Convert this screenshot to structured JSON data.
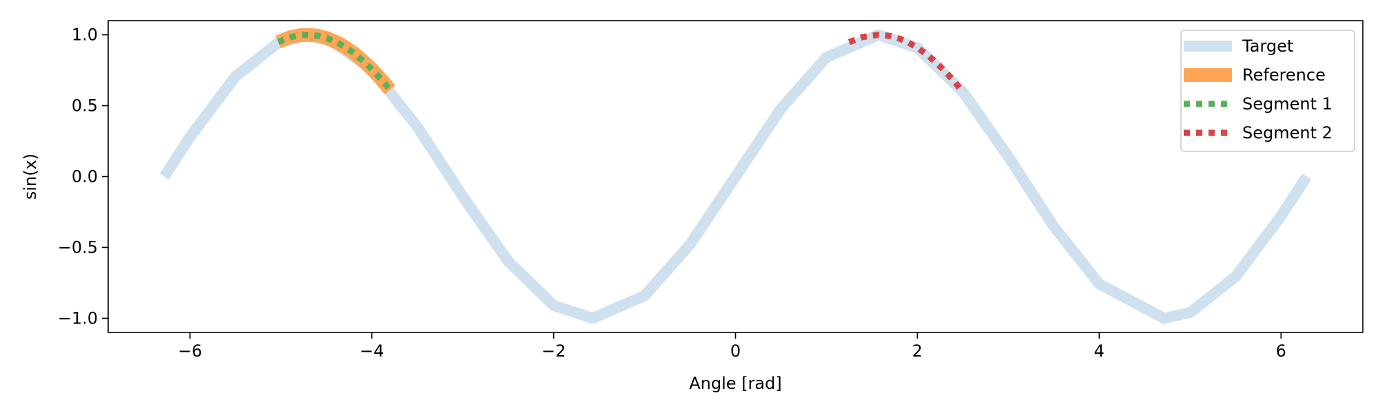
{
  "chart_data": {
    "type": "line",
    "title": "",
    "xlabel": "Angle [rad]",
    "ylabel": "sin(x)",
    "xlim": [
      -6.9,
      6.9
    ],
    "ylim": [
      -1.1,
      1.1
    ],
    "xticks": [
      -6,
      -4,
      -2,
      0,
      2,
      4,
      6
    ],
    "xtick_labels": [
      "−6",
      "−4",
      "−2",
      "0",
      "2",
      "4",
      "6"
    ],
    "yticks": [
      -1.0,
      -0.5,
      0.0,
      0.5,
      1.0
    ],
    "ytick_labels": [
      "−1.0",
      "−0.5",
      "0.0",
      "0.5",
      "1.0"
    ],
    "grid": false,
    "legend_position": "top-right",
    "series": [
      {
        "name": "Target",
        "color": "#cfe0ee",
        "style": "solid",
        "x": [
          -6.283,
          -6.0,
          -5.5,
          -5.0,
          -4.712,
          -4.5,
          -4.0,
          -3.5,
          -3.142,
          -3.0,
          -2.5,
          -2.0,
          -1.571,
          -1.0,
          -0.5,
          0.0,
          0.5,
          1.0,
          1.571,
          2.0,
          2.5,
          3.0,
          3.142,
          3.5,
          4.0,
          4.712,
          5.0,
          5.5,
          6.0,
          6.283
        ],
        "y": [
          0.0,
          0.279,
          0.706,
          0.959,
          1.0,
          0.978,
          0.757,
          0.351,
          0.0,
          -0.141,
          -0.598,
          -0.909,
          -1.0,
          -0.841,
          -0.479,
          0.0,
          0.479,
          0.841,
          1.0,
          0.909,
          0.598,
          0.141,
          0.0,
          -0.351,
          -0.757,
          -1.0,
          -0.959,
          -0.706,
          -0.279,
          0.0
        ]
      },
      {
        "name": "Reference",
        "color": "#ffa556",
        "style": "solid",
        "x": [
          -5.03,
          -4.9,
          -4.8,
          -4.712,
          -4.6,
          -4.5,
          -4.4,
          -4.3,
          -4.2,
          -4.1,
          -4.0,
          -3.9,
          -3.8
        ],
        "y": [
          0.95,
          0.982,
          0.996,
          1.0,
          0.994,
          0.978,
          0.952,
          0.917,
          0.872,
          0.818,
          0.757,
          0.688,
          0.612
        ]
      },
      {
        "name": "Segment 1",
        "color": "#5ab05a",
        "style": "dotted",
        "x": [
          -5.03,
          -4.9,
          -4.8,
          -4.712,
          -4.6,
          -4.5,
          -4.4,
          -4.3,
          -4.2,
          -4.1,
          -4.0,
          -3.9,
          -3.8
        ],
        "y": [
          0.95,
          0.982,
          0.996,
          1.0,
          0.994,
          0.978,
          0.952,
          0.917,
          0.872,
          0.818,
          0.757,
          0.688,
          0.612
        ]
      },
      {
        "name": "Segment 2",
        "color": "#d64545",
        "style": "dotted",
        "x": [
          1.25,
          1.4,
          1.571,
          1.7,
          1.8,
          1.9,
          2.0,
          2.1,
          2.2,
          2.3,
          2.4,
          2.5
        ],
        "y": [
          0.949,
          0.985,
          1.0,
          0.992,
          0.974,
          0.946,
          0.909,
          0.863,
          0.808,
          0.746,
          0.675,
          0.598
        ]
      }
    ]
  }
}
